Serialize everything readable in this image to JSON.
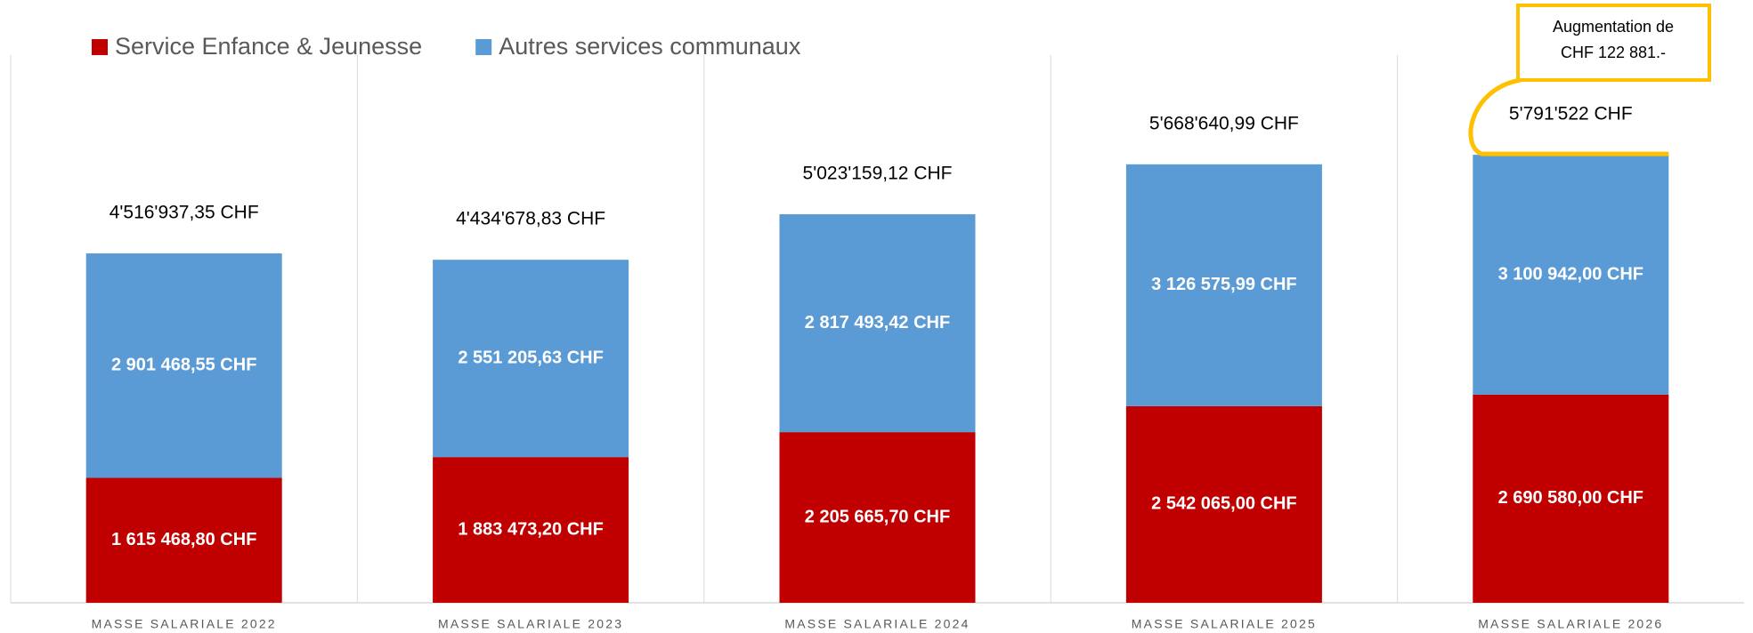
{
  "chart_data": {
    "type": "stacked_bar",
    "categories": [
      "MASSE SALARIALE 2022",
      "MASSE SALARIALE 2023",
      "MASSE SALARIALE 2024",
      "MASSE SALARIALE 2025",
      "MASSE SALARIALE 2026"
    ],
    "series": [
      {
        "name": "Service Enfance & Jeunesse",
        "color": "#c00000",
        "values": [
          1615468.8,
          1883473.2,
          2205665.7,
          2542065.0,
          2690580.0
        ],
        "value_labels": [
          "1 615 468,80 CHF",
          "1 883 473,20 CHF",
          "2 205 665,70 CHF",
          "2 542 065,00 CHF",
          "2 690 580,00 CHF"
        ]
      },
      {
        "name": "Autres services communaux",
        "color": "#5b9bd5",
        "values": [
          2901468.55,
          2551205.63,
          2817493.42,
          3126575.99,
          3100942.0
        ],
        "value_labels": [
          "2 901 468,55 CHF",
          "2 551 205,63 CHF",
          "2 817 493,42 CHF",
          "3 126 575,99 CHF",
          "3 100 942,00 CHF"
        ]
      }
    ],
    "totals": {
      "values": [
        4516937.35,
        4434678.83,
        5023159.12,
        5668640.99,
        5791522
      ],
      "value_labels": [
        "4'516'937,35 CHF",
        "4'434'678,83 CHF",
        "5'023'159,12 CHF",
        "5'668'640,99 CHF",
        "5'791'522 CHF"
      ]
    },
    "annotation": {
      "lines": [
        "Augmentation de",
        "CHF 122 881.-"
      ],
      "color": "#ffc000"
    },
    "ylim": [
      0,
      7000000
    ],
    "legend": "top-left"
  }
}
